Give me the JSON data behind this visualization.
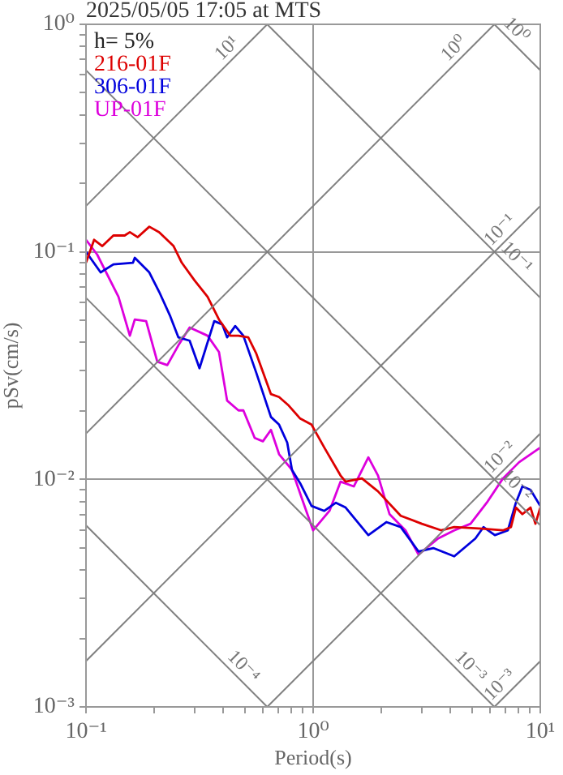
{
  "chart_data": {
    "type": "line",
    "title": "2025/05/05 17:05 at MTS",
    "xlabel": "Period(s)",
    "ylabel": "pSv(cm/s)",
    "log": "xy",
    "xlim": [
      0.1,
      10
    ],
    "ylim": [
      0.001,
      1
    ],
    "xticks": [
      {
        "value": 0.1,
        "label": "10⁻¹"
      },
      {
        "value": 0.2,
        "label": null
      },
      {
        "value": 0.3,
        "label": null
      },
      {
        "value": 0.4,
        "label": null
      },
      {
        "value": 0.5,
        "label": null
      },
      {
        "value": 0.6,
        "label": null
      },
      {
        "value": 0.7,
        "label": null
      },
      {
        "value": 0.8,
        "label": null
      },
      {
        "value": 0.9,
        "label": null
      },
      {
        "value": 1,
        "label": "10⁰"
      },
      {
        "value": 2,
        "label": null
      },
      {
        "value": 3,
        "label": null
      },
      {
        "value": 4,
        "label": null
      },
      {
        "value": 5,
        "label": null
      },
      {
        "value": 6,
        "label": null
      },
      {
        "value": 7,
        "label": null
      },
      {
        "value": 8,
        "label": null
      },
      {
        "value": 9,
        "label": null
      },
      {
        "value": 10,
        "label": "10¹"
      }
    ],
    "yticks": [
      {
        "value": 0.001,
        "label": "10⁻³"
      },
      {
        "value": 0.002,
        "label": null
      },
      {
        "value": 0.003,
        "label": null
      },
      {
        "value": 0.004,
        "label": null
      },
      {
        "value": 0.005,
        "label": null
      },
      {
        "value": 0.006,
        "label": null
      },
      {
        "value": 0.007,
        "label": null
      },
      {
        "value": 0.008,
        "label": null
      },
      {
        "value": 0.009,
        "label": null
      },
      {
        "value": 0.01,
        "label": "10⁻²"
      },
      {
        "value": 0.02,
        "label": null
      },
      {
        "value": 0.03,
        "label": null
      },
      {
        "value": 0.04,
        "label": null
      },
      {
        "value": 0.05,
        "label": null
      },
      {
        "value": 0.06,
        "label": null
      },
      {
        "value": 0.07,
        "label": null
      },
      {
        "value": 0.08,
        "label": null
      },
      {
        "value": 0.09,
        "label": null
      },
      {
        "value": 0.1,
        "label": "10⁻¹"
      },
      {
        "value": 0.2,
        "label": null
      },
      {
        "value": 0.3,
        "label": null
      },
      {
        "value": 0.4,
        "label": null
      },
      {
        "value": 0.5,
        "label": null
      },
      {
        "value": 0.6,
        "label": null
      },
      {
        "value": 0.7,
        "label": null
      },
      {
        "value": 0.8,
        "label": null
      },
      {
        "value": 0.9,
        "label": null
      },
      {
        "value": 1,
        "label": "10⁰"
      }
    ],
    "grid": true,
    "legend": "top left",
    "marker": "none",
    "line_style": "solid",
    "annotations": [
      "h= 5%"
    ],
    "series": [
      {
        "type": "line",
        "name": "10¹",
        "color": "#808080",
        "x": [
          0.1,
          0.628
        ],
        "values": [
          0.159,
          1
        ]
      },
      {
        "type": "line",
        "name": "10⁰",
        "color": "#808080",
        "x": [
          0.1,
          6.28
        ],
        "values": [
          0.0159,
          1
        ]
      },
      {
        "type": "line",
        "name": "10⁻¹",
        "color": "#808080",
        "x": [
          0.1,
          10
        ],
        "values": [
          0.00159,
          0.159
        ]
      },
      {
        "type": "line",
        "name": "10⁻²",
        "color": "#808080",
        "x": [
          0.628,
          10
        ],
        "values": [
          0.001,
          0.0159
        ]
      },
      {
        "type": "line",
        "name": "10⁻³",
        "color": "#808080",
        "x": [
          6.28,
          10
        ],
        "values": [
          0.001,
          0.00159
        ]
      },
      {
        "type": "line",
        "name": "10⁰",
        "color": "#808080",
        "x": [
          6.28,
          10
        ],
        "values": [
          1,
          0.628
        ]
      },
      {
        "type": "line",
        "name": "10⁻¹",
        "color": "#808080",
        "x": [
          0.628,
          10
        ],
        "values": [
          1,
          0.0628
        ]
      },
      {
        "type": "line",
        "name": "10⁻²",
        "color": "#808080",
        "x": [
          0.1,
          10
        ],
        "values": [
          0.628,
          0.00628
        ]
      },
      {
        "type": "line",
        "name": "10⁻³",
        "color": "#808080",
        "x": [
          0.1,
          6.28
        ],
        "values": [
          0.0628,
          0.001
        ]
      },
      {
        "type": "line",
        "name": "10⁻⁴",
        "color": "#808080",
        "x": [
          0.1,
          0.628
        ],
        "values": [
          0.00628,
          0.001
        ]
      },
      {
        "name": "216-01F",
        "color": "#dd0000",
        "x": [
          0.1,
          0.1086,
          0.118,
          0.132,
          0.148,
          0.156,
          0.169,
          0.19,
          0.21,
          0.243,
          0.264,
          0.301,
          0.343,
          0.385,
          0.432,
          0.469,
          0.518,
          0.562,
          0.652,
          0.708,
          0.781,
          0.877,
          0.984,
          1.12,
          1.32,
          1.39,
          1.64,
          1.93,
          2.43,
          3.01,
          3.67,
          4.18,
          5.53,
          6.85,
          7.43,
          7.81,
          8.34,
          9.06,
          9.52,
          10
        ],
        "values": [
          0.0896,
          0.113,
          0.106,
          0.118,
          0.118,
          0.122,
          0.116,
          0.129,
          0.122,
          0.106,
          0.0896,
          0.0748,
          0.0635,
          0.0504,
          0.0428,
          0.0428,
          0.0421,
          0.0357,
          0.0237,
          0.023,
          0.0211,
          0.0185,
          0.0174,
          0.0138,
          0.0104,
          0.00977,
          0.0101,
          0.00886,
          0.00692,
          0.00638,
          0.00597,
          0.00617,
          0.00607,
          0.00597,
          0.00617,
          0.00752,
          0.00703,
          0.00752,
          0.00638,
          0.00752
        ]
      },
      {
        "name": "306-01F",
        "color": "#0000dd",
        "x": [
          0.1,
          0.116,
          0.132,
          0.161,
          0.164,
          0.19,
          0.21,
          0.235,
          0.255,
          0.286,
          0.316,
          0.367,
          0.398,
          0.418,
          0.454,
          0.493,
          0.562,
          0.652,
          0.708,
          0.769,
          0.807,
          0.877,
          0.984,
          1.12,
          1.26,
          1.39,
          1.75,
          2.1,
          2.43,
          2.91,
          3.38,
          4.18,
          5.18,
          5.62,
          6.31,
          7.2,
          7.81,
          8.34,
          9.06,
          10
        ],
        "values": [
          0.1,
          0.0812,
          0.0881,
          0.0896,
          0.0942,
          0.0812,
          0.0667,
          0.0521,
          0.0421,
          0.0407,
          0.0308,
          0.0496,
          0.048,
          0.0421,
          0.0472,
          0.0428,
          0.0294,
          0.0188,
          0.0174,
          0.0145,
          0.011,
          0.00961,
          0.00764,
          0.00727,
          0.00789,
          0.00752,
          0.00569,
          0.00649,
          0.00617,
          0.00482,
          0.00499,
          0.00459,
          0.0055,
          0.00617,
          0.00569,
          0.00597,
          0.00789,
          0.00931,
          0.009,
          0.00764
        ]
      },
      {
        "name": "UP-01F",
        "color": "#dd00dd",
        "x": [
          0.1,
          0.112,
          0.139,
          0.156,
          0.164,
          0.184,
          0.206,
          0.228,
          0.255,
          0.286,
          0.343,
          0.385,
          0.418,
          0.469,
          0.493,
          0.553,
          0.601,
          0.652,
          0.708,
          0.807,
          0.906,
          1.0,
          1.18,
          1.32,
          1.51,
          1.75,
          1.93,
          2.17,
          2.55,
          2.91,
          3.55,
          4.18,
          4.93,
          5.81,
          6.85,
          8.07,
          10
        ],
        "values": [
          0.113,
          0.0973,
          0.0635,
          0.0428,
          0.0504,
          0.0496,
          0.0329,
          0.0318,
          0.0388,
          0.0465,
          0.0428,
          0.0363,
          0.0222,
          0.0201,
          0.0201,
          0.0152,
          0.0147,
          0.0165,
          0.0129,
          0.011,
          0.00789,
          0.00597,
          0.00727,
          0.00977,
          0.00931,
          0.0125,
          0.0104,
          0.00703,
          0.00597,
          0.00467,
          0.0055,
          0.00597,
          0.00638,
          0.00789,
          0.0101,
          0.0119,
          0.0138
        ]
      }
    ]
  }
}
